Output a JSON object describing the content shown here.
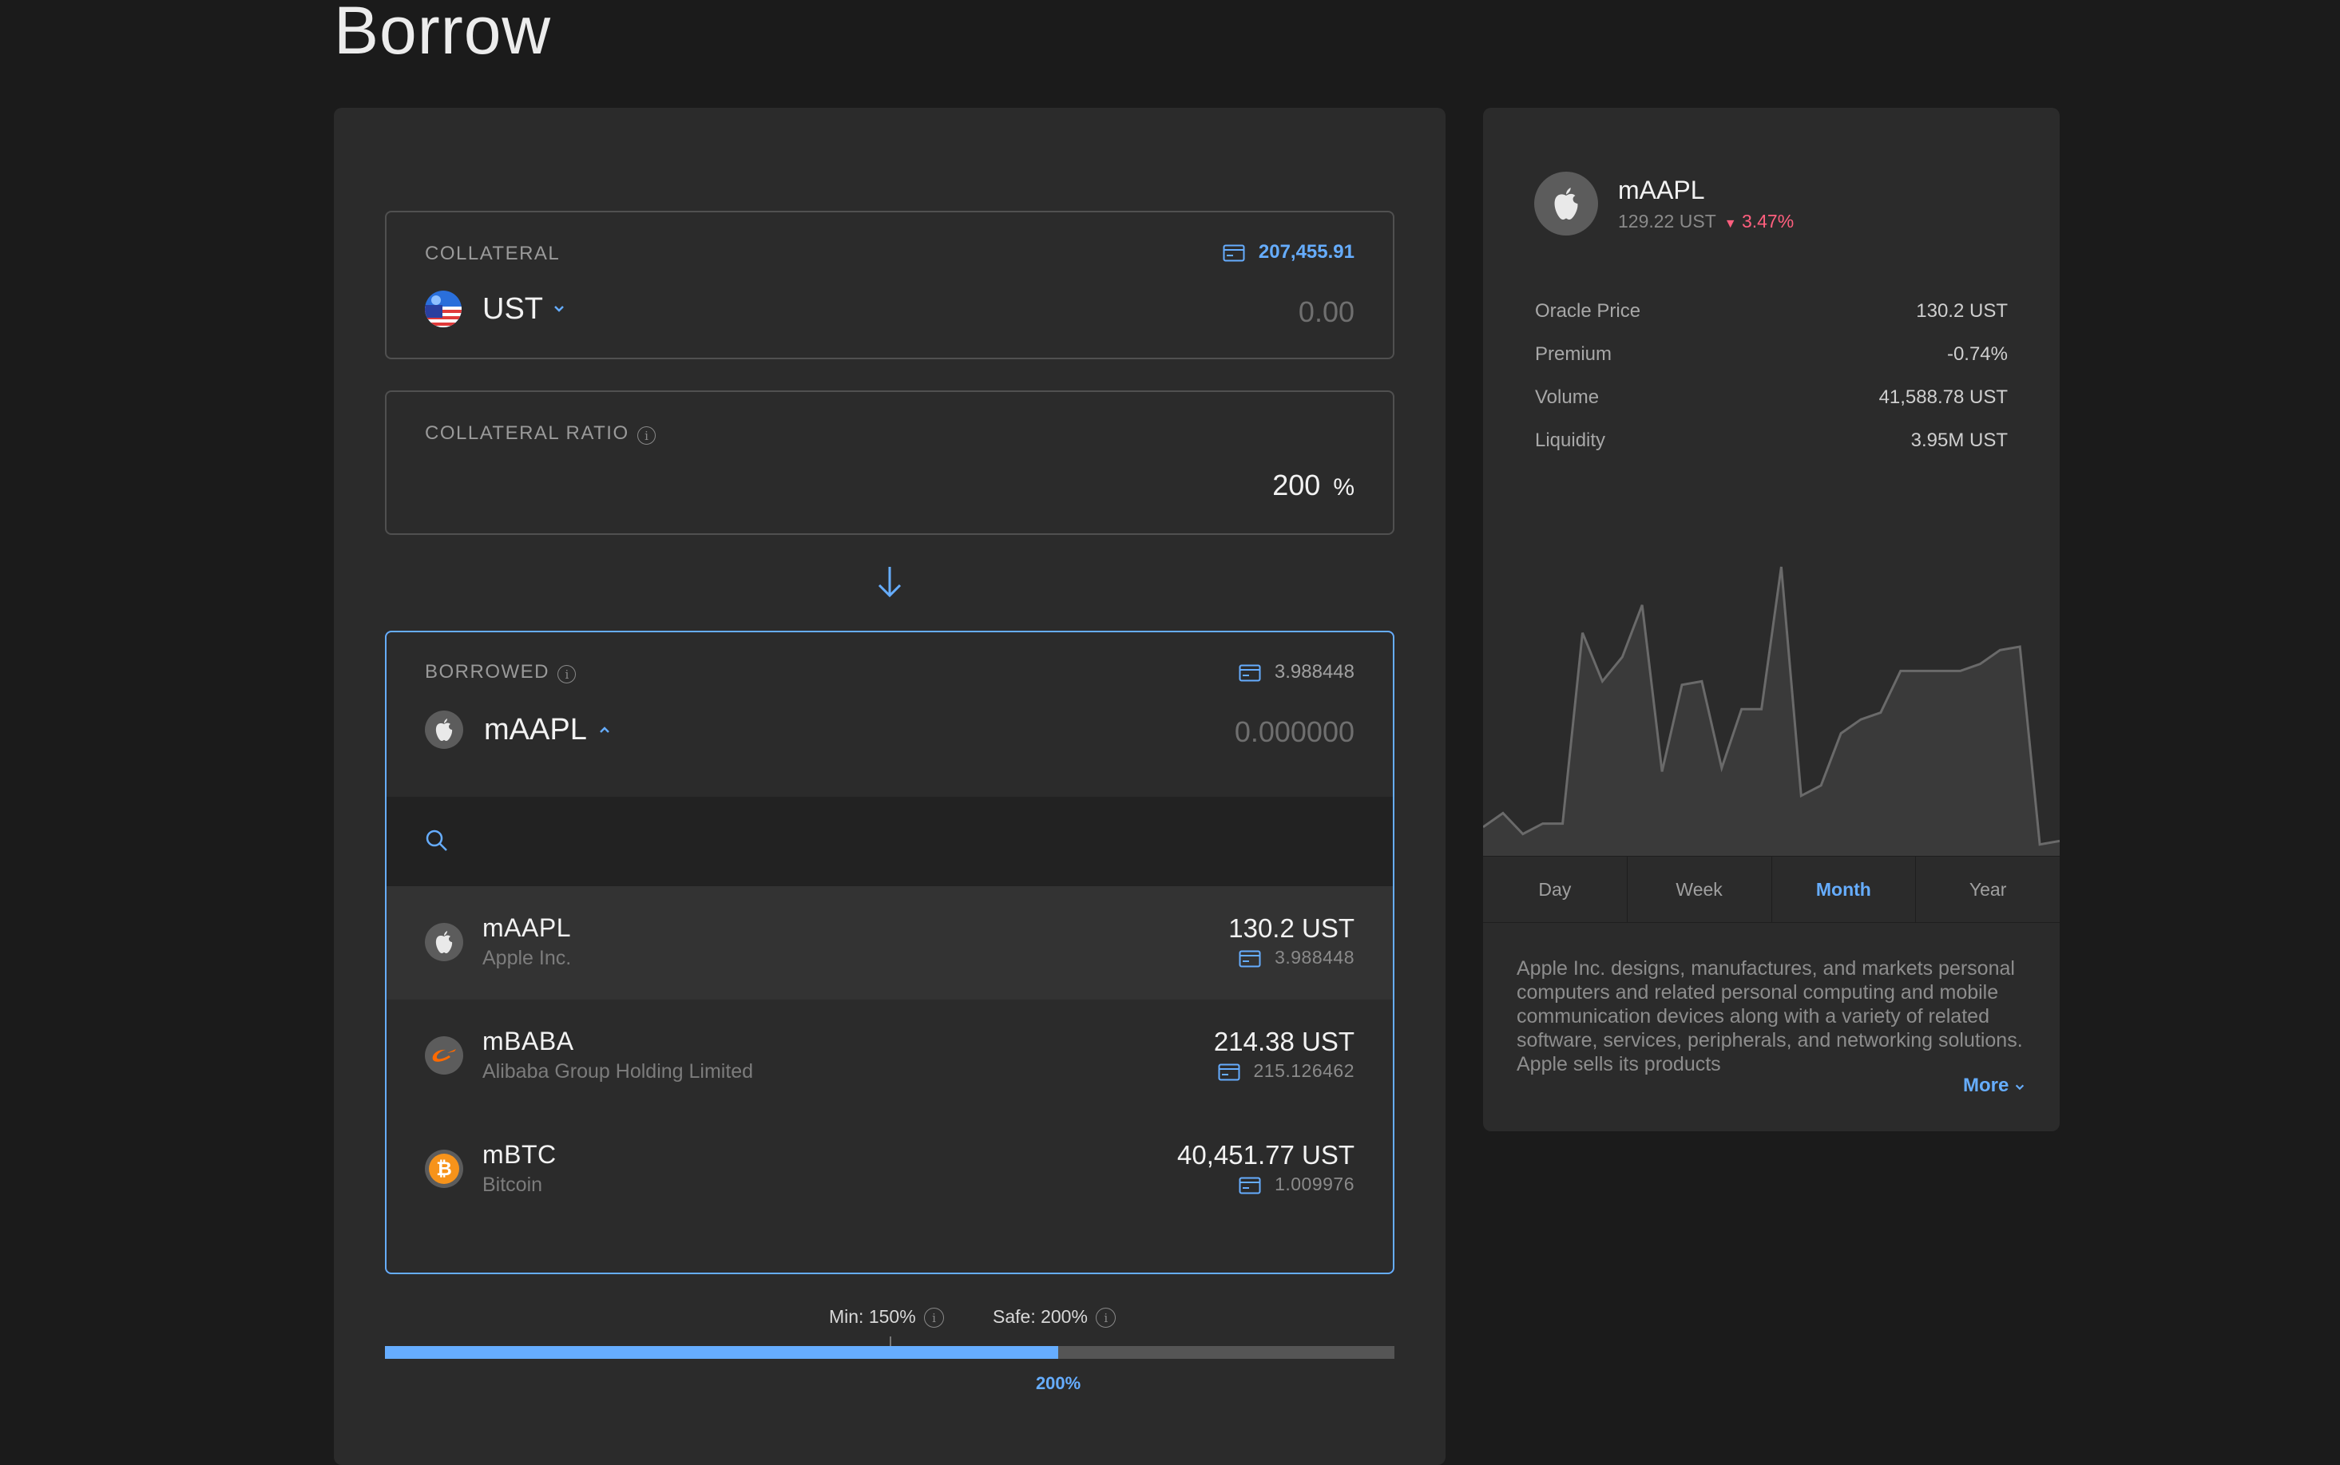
{
  "page": {
    "title": "Borrow"
  },
  "collateral": {
    "label": "COLLATERAL",
    "balance": "207,455.91",
    "token": "UST",
    "amount_placeholder": "0.00"
  },
  "ratio": {
    "label": "COLLATERAL RATIO",
    "value": "200",
    "unit": "%"
  },
  "borrowed": {
    "label": "BORROWED",
    "balance": "3.988448",
    "token": "mAAPL",
    "amount_placeholder": "0.000000",
    "search_placeholder": "",
    "items": [
      {
        "symbol": "mAAPL",
        "name": "Apple Inc.",
        "price": "130.2 UST",
        "balance": "3.988448",
        "icon": "apple-icon"
      },
      {
        "symbol": "mBABA",
        "name": "Alibaba Group Holding Limited",
        "price": "214.38 UST",
        "balance": "215.126462",
        "icon": "alibaba-icon"
      },
      {
        "symbol": "mBTC",
        "name": "Bitcoin",
        "price": "40,451.77 UST",
        "balance": "1.009976",
        "icon": "bitcoin-icon"
      }
    ]
  },
  "ratio_bar": {
    "min_label": "Min: 150%",
    "safe_label": "Safe: 200%",
    "current_label": "200%",
    "min_fraction": 0.5,
    "current_fraction": 0.667
  },
  "asset_panel": {
    "symbol": "mAAPL",
    "price": "129.22 UST",
    "change": "3.47%",
    "change_direction": "down",
    "stats": [
      {
        "label": "Oracle Price",
        "value": "130.2 UST"
      },
      {
        "label": "Premium",
        "value": "-0.74%"
      },
      {
        "label": "Volume",
        "value": "41,588.78 UST"
      },
      {
        "label": "Liquidity",
        "value": "3.95M UST"
      }
    ],
    "tabs": [
      "Day",
      "Week",
      "Month",
      "Year"
    ],
    "active_tab": "Month",
    "description": "Apple Inc. designs, manufactures, and markets personal computers and related personal computing and mobile communication devices along with a variety of related software, services, peripherals, and networking solutions. Apple sells its products",
    "more_label": "More"
  },
  "chart_data": {
    "type": "area",
    "values": [
      6,
      10,
      4,
      7,
      7,
      62,
      48,
      55,
      70,
      22,
      47,
      48,
      23,
      40,
      40,
      81,
      15,
      18,
      33,
      37,
      39,
      51,
      51,
      51,
      51,
      53,
      57,
      58,
      1,
      2
    ]
  },
  "colors": {
    "accent": "#66adff",
    "negative": "#ff5f7e",
    "bitcoin": "#f7931a",
    "alibaba": "#ff6a00"
  }
}
